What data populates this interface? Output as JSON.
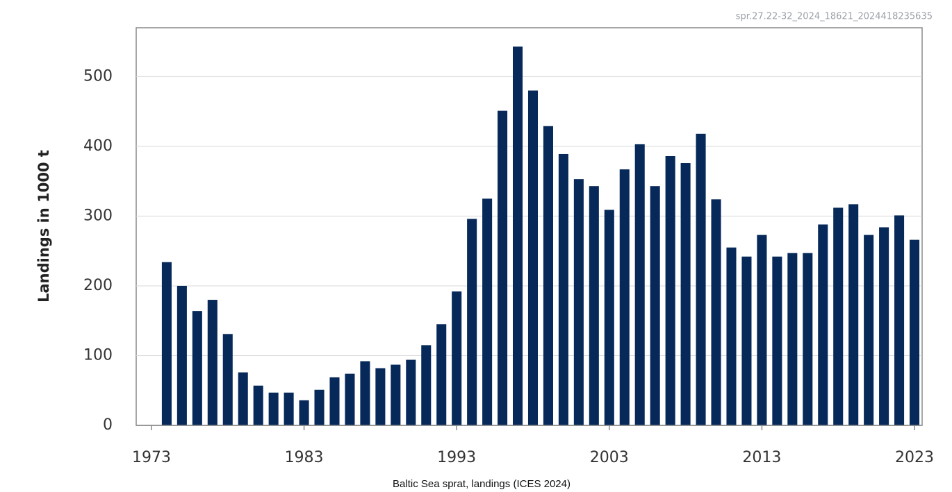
{
  "chart_data": {
    "type": "bar",
    "watermark": "spr.27.22-32_2024_18621_2024418235635",
    "ylabel": "Landings in 1000 t",
    "caption": "Baltic Sea sprat, landings (ICES 2024)",
    "x": [
      1974,
      1975,
      1976,
      1977,
      1978,
      1979,
      1980,
      1981,
      1982,
      1983,
      1984,
      1985,
      1986,
      1987,
      1988,
      1989,
      1990,
      1991,
      1992,
      1993,
      1994,
      1995,
      1996,
      1997,
      1998,
      1999,
      2000,
      2001,
      2002,
      2003,
      2004,
      2005,
      2006,
      2007,
      2008,
      2009,
      2010,
      2011,
      2012,
      2013,
      2014,
      2015,
      2016,
      2017,
      2018,
      2019,
      2020,
      2021,
      2022,
      2023
    ],
    "values": [
      234,
      200,
      164,
      180,
      131,
      76,
      57,
      47,
      47,
      36,
      51,
      69,
      74,
      92,
      82,
      87,
      94,
      115,
      145,
      192,
      296,
      325,
      451,
      543,
      480,
      429,
      389,
      353,
      343,
      309,
      367,
      403,
      343,
      386,
      376,
      418,
      324,
      255,
      242,
      273,
      242,
      247,
      247,
      288,
      312,
      317,
      273,
      284,
      301,
      266
    ],
    "color": "#06295a",
    "xlim": [
      1972,
      2023.5
    ],
    "xticks": [
      1973,
      1983,
      1993,
      2003,
      2013,
      2023
    ],
    "ylim": [
      0,
      570
    ],
    "yticks": [
      0,
      100,
      200,
      300,
      400,
      500
    ],
    "grid": true
  }
}
